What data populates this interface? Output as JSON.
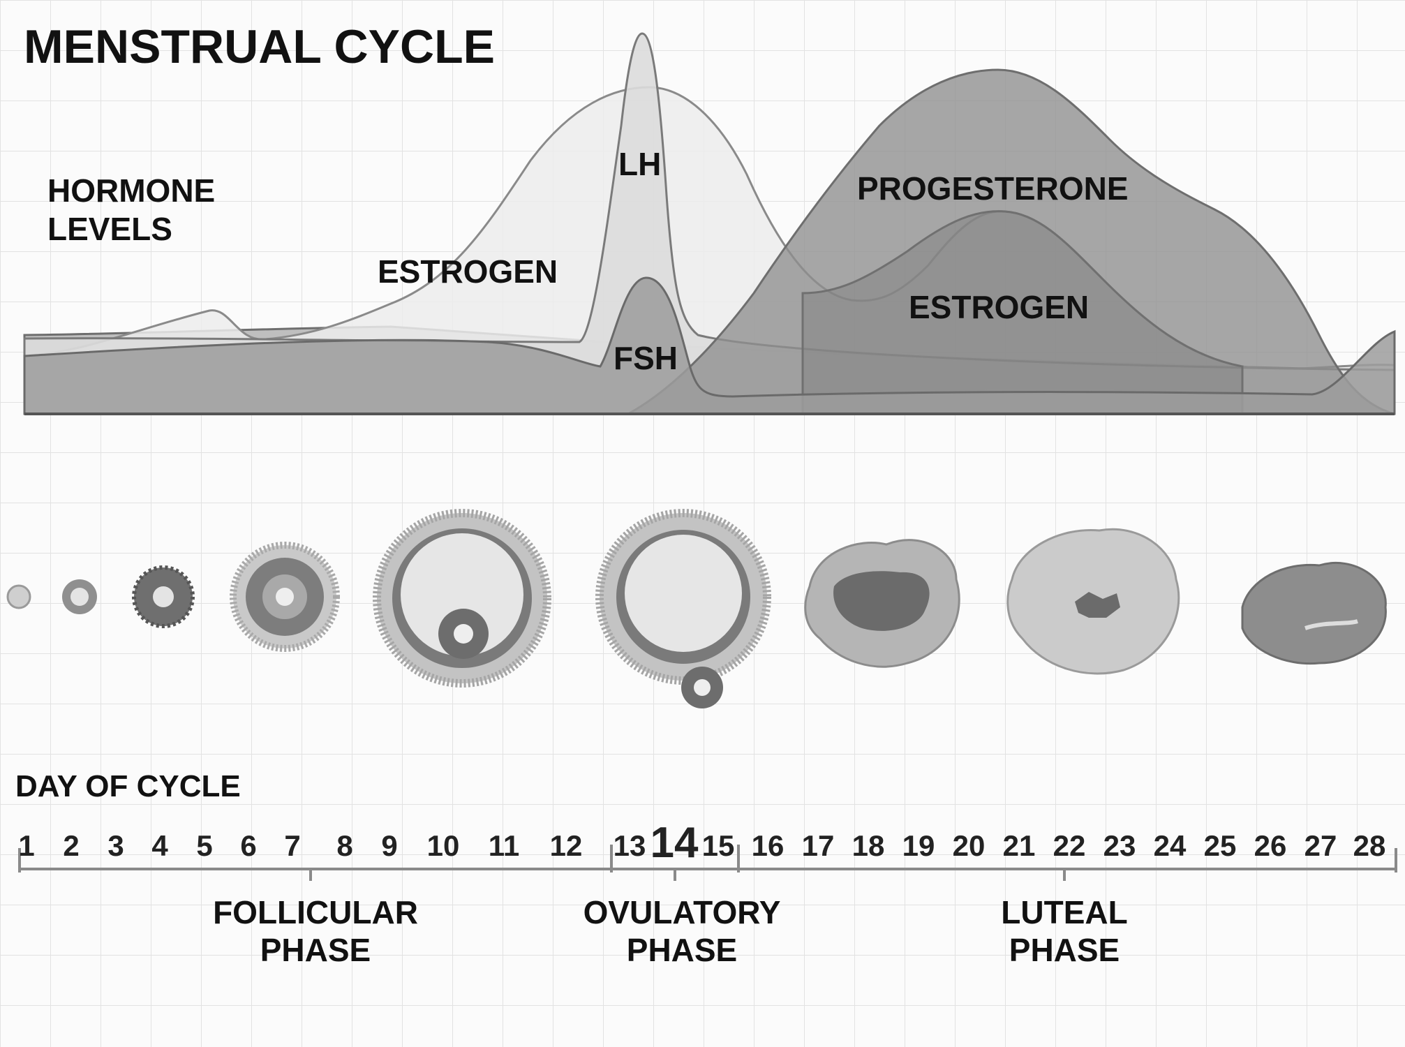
{
  "title": "MENSTRUAL CYCLE",
  "hormone_levels_label": "HORMONE\nLEVELS",
  "curve_labels": {
    "lh": "LH",
    "estrogen_1": "ESTROGEN",
    "fsh": "FSH",
    "progesterone": "PROGESTERONE",
    "estrogen_2": "ESTROGEN"
  },
  "axis": {
    "label": "DAY OF CYCLE",
    "days": [
      "1",
      "2",
      "3",
      "4",
      "5",
      "6",
      "7",
      "8",
      "9",
      "10",
      "11",
      "12",
      "13",
      "14",
      "15",
      "16",
      "17",
      "18",
      "19",
      "20",
      "21",
      "22",
      "23",
      "24",
      "25",
      "26",
      "27",
      "28"
    ],
    "highlight_day": "14"
  },
  "phases": {
    "follicular": "FOLLICULAR\nPHASE",
    "ovulatory": "OVULATORY\nPHASE",
    "luteal": "LUTEAL\nPHASE"
  },
  "colors": {
    "estrogen_fill": "#e9e9e9",
    "lh_fill": "#d9d9d9",
    "fsh_fill": "#9c9c9c",
    "progesterone_fill": "#8f8f8f",
    "baseline_fill": "#bcbcbc",
    "curve_stroke": "#7a7a7a",
    "grid": "#e2e2e2"
  }
}
